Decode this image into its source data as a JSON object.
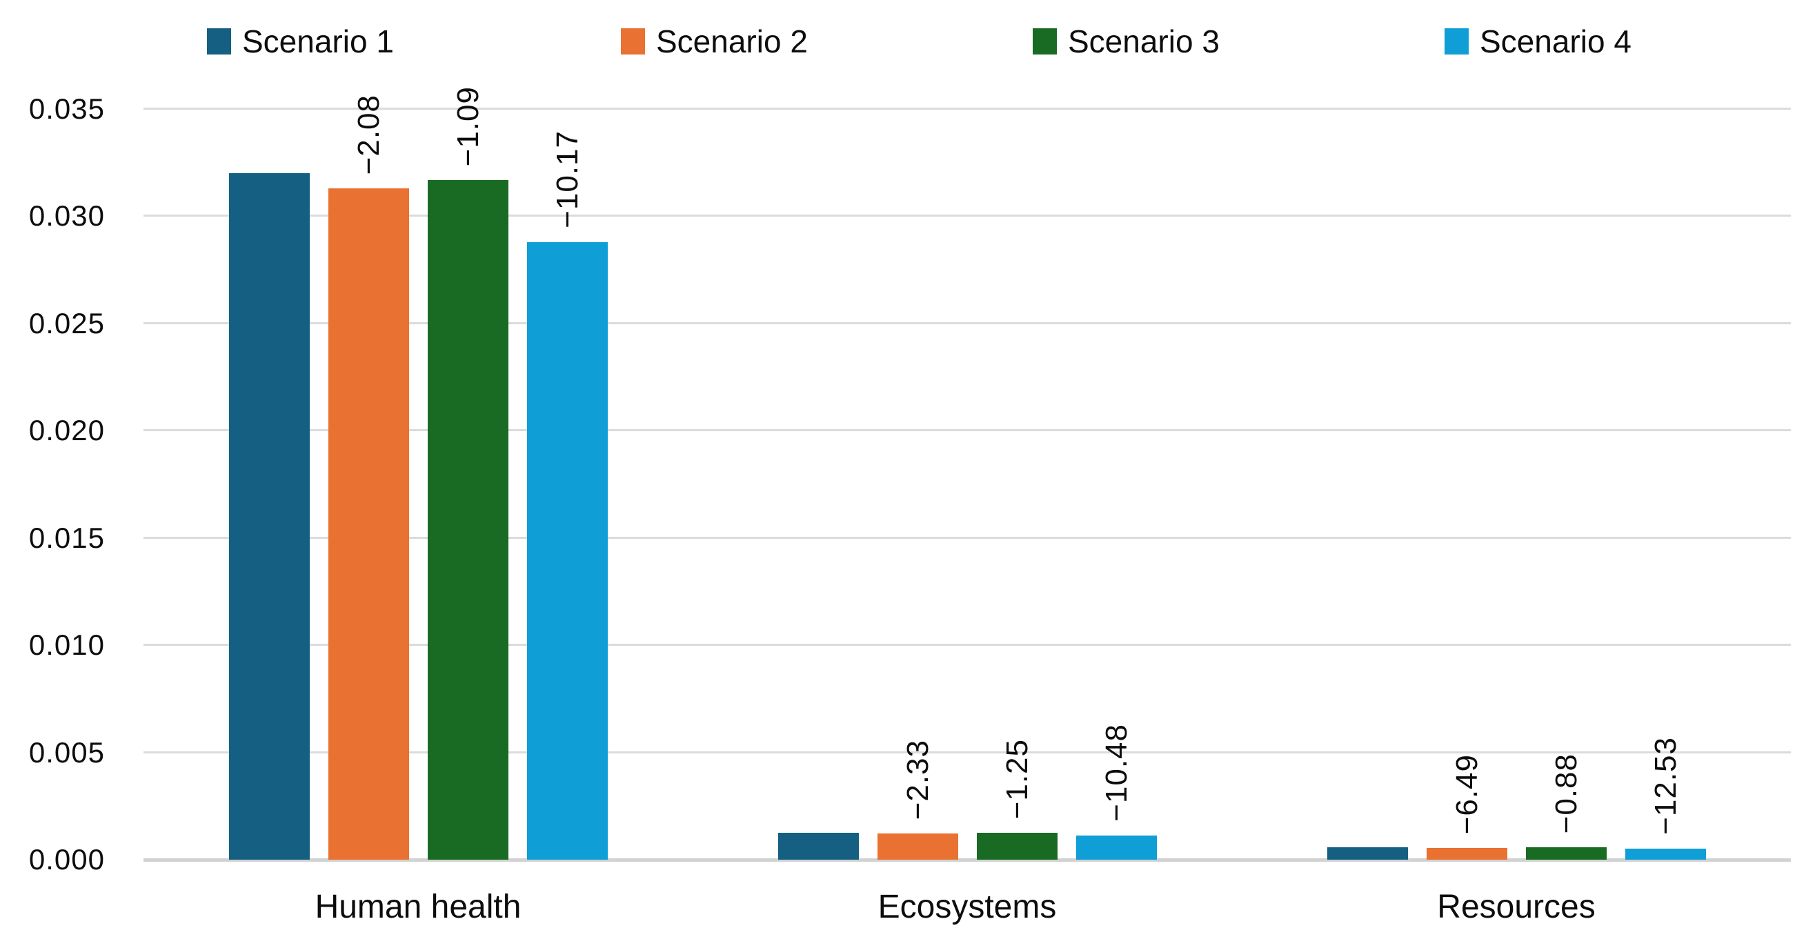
{
  "chart": {
    "background_color": "#FFFFFF",
    "gridline_color": "#DBDBDB",
    "axis_text_color": "#0D0D0D"
  },
  "chart_data": {
    "type": "bar",
    "title": "",
    "xlabel": "",
    "ylabel": "",
    "grid": true,
    "legend_position": "top",
    "bar_label_rotation": "vertical-bottom-to-top",
    "categories": [
      "Human health",
      "Ecosystems",
      "Resources"
    ],
    "series": [
      {
        "name": "Scenario 1",
        "color": "#156082",
        "values": [
          0.032,
          0.00126,
          0.00058
        ],
        "labels": [
          "",
          "",
          ""
        ]
      },
      {
        "name": "Scenario 2",
        "color": "#E97132",
        "values": [
          0.0313,
          0.00123,
          0.00054
        ],
        "labels": [
          "−2.08",
          "−2.33",
          "−6.49"
        ]
      },
      {
        "name": "Scenario 3",
        "color": "#196B24",
        "values": [
          0.0317,
          0.00124,
          0.00057
        ],
        "labels": [
          "−1.09",
          "−1.25",
          "−0.88"
        ]
      },
      {
        "name": "Scenario 4",
        "color": "#0F9ED5",
        "values": [
          0.0288,
          0.00113,
          0.00051
        ],
        "labels": [
          "−10.17",
          "−10.48",
          "−12.53"
        ]
      }
    ],
    "y_axis": {
      "min": 0,
      "max": 0.035,
      "step": 0.005,
      "tick_labels": [
        "0.000",
        "0.005",
        "0.010",
        "0.015",
        "0.020",
        "0.025",
        "0.030",
        "0.035"
      ]
    }
  }
}
